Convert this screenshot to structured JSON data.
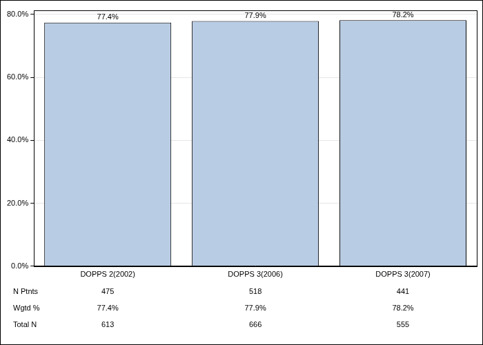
{
  "chart_data": {
    "type": "bar",
    "categories": [
      "DOPPS 2(2002)",
      "DOPPS 3(2006)",
      "DOPPS 3(2007)"
    ],
    "values": [
      77.4,
      77.9,
      78.2
    ],
    "value_labels": [
      "77.4%",
      "77.9%",
      "78.2%"
    ],
    "data_labels": true,
    "color": "#b8cce4",
    "ylim": [
      0,
      81.3
    ],
    "yticks": [
      {
        "value": 0,
        "label": "0.0%"
      },
      {
        "value": 20,
        "label": "20.0%"
      },
      {
        "value": 40,
        "label": "40.0%"
      },
      {
        "value": 60,
        "label": "60.0%"
      },
      {
        "value": 80,
        "label": "80.0%"
      }
    ],
    "grid": true
  },
  "table": {
    "rows": [
      {
        "label": "N Ptnts",
        "cells": [
          475,
          518,
          441
        ]
      },
      {
        "label": "Wgtd %",
        "cells": [
          "77.4%",
          "77.9%",
          "78.2%"
        ]
      },
      {
        "label": "Total N",
        "cells": [
          613,
          666,
          555
        ]
      }
    ]
  }
}
